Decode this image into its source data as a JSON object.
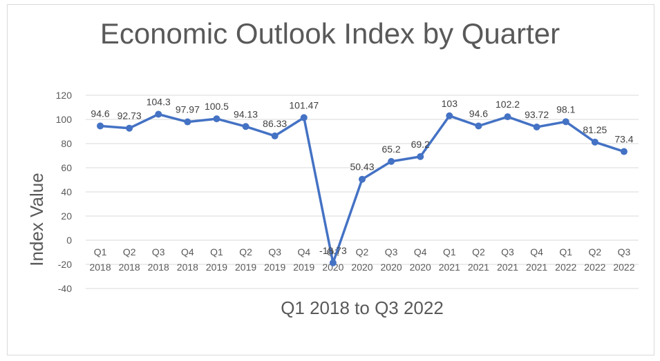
{
  "colors": {
    "series": "#4472C4",
    "gridline": "#d9d9d9",
    "text": "#595959",
    "frame_border": "#d9d9d9"
  },
  "chart_data": {
    "type": "line",
    "title": "Economic Outlook Index by Quarter",
    "xlabel": "Q1 2018 to Q3 2022",
    "ylabel": "Index Value",
    "ylim": [
      -40,
      120
    ],
    "yticks": [
      -40,
      -20,
      0,
      20,
      40,
      60,
      80,
      100,
      120
    ],
    "grid": true,
    "legend": "none",
    "markers": true,
    "categories": [
      [
        "Q1",
        "2018"
      ],
      [
        "Q2",
        "2018"
      ],
      [
        "Q3",
        "2018"
      ],
      [
        "Q4",
        "2018"
      ],
      [
        "Q1",
        "2019"
      ],
      [
        "Q2",
        "2019"
      ],
      [
        "Q3",
        "2019"
      ],
      [
        "Q4",
        "2019"
      ],
      [
        "Q1",
        "2020"
      ],
      [
        "Q2",
        "2020"
      ],
      [
        "Q3",
        "2020"
      ],
      [
        "Q4",
        "2020"
      ],
      [
        "Q1",
        "2021"
      ],
      [
        "Q2",
        "2021"
      ],
      [
        "Q3",
        "2021"
      ],
      [
        "Q4",
        "2021"
      ],
      [
        "Q1",
        "2022"
      ],
      [
        "Q2",
        "2022"
      ],
      [
        "Q3",
        "2022"
      ]
    ],
    "values": [
      94.6,
      92.73,
      104.3,
      97.97,
      100.5,
      94.13,
      86.33,
      101.47,
      -18.73,
      50.43,
      65.2,
      69.2,
      103,
      94.6,
      102.2,
      93.72,
      98.1,
      81.25,
      73.4
    ],
    "data_labels": [
      "94.6",
      "92.73",
      "104.3",
      "97.97",
      "100.5",
      "94.13",
      "86.33",
      "101.47",
      "-18.73",
      "50.43",
      "65.2",
      "69.2",
      "103",
      "94.6",
      "102.2",
      "93.72",
      "98.1",
      "81.25",
      "73.4"
    ]
  }
}
